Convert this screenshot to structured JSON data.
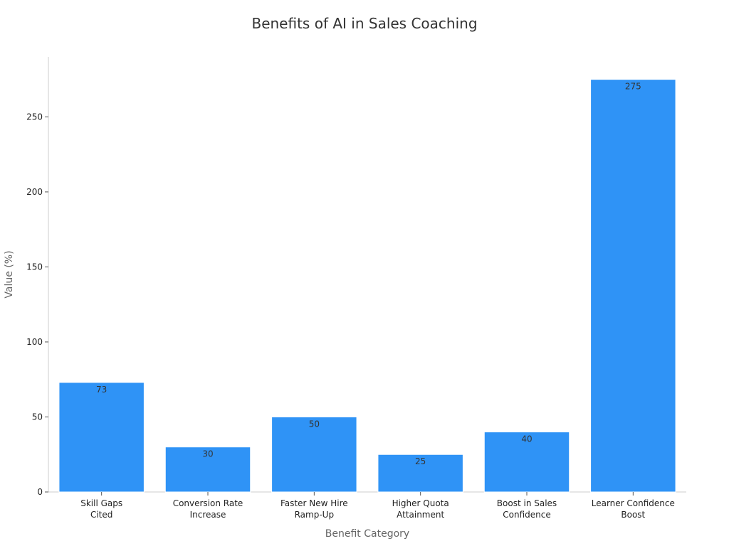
{
  "chart_data": {
    "type": "bar",
    "title": "Benefits of AI in Sales Coaching",
    "xlabel": "Benefit Category",
    "ylabel": "Value (%)",
    "categories": [
      [
        "Skill Gaps",
        "Cited"
      ],
      [
        "Conversion Rate",
        "Increase"
      ],
      [
        "Faster New Hire",
        "Ramp-Up"
      ],
      [
        "Higher Quota",
        "Attainment"
      ],
      [
        "Boost in Sales",
        "Confidence"
      ],
      [
        "Learner Confidence",
        "Boost"
      ]
    ],
    "values": [
      73,
      30,
      50,
      25,
      40,
      275
    ],
    "ylim": [
      0,
      290
    ],
    "yticks": [
      0,
      50,
      100,
      150,
      200,
      250
    ],
    "bar_color": "#2f93f6",
    "grid": false
  }
}
